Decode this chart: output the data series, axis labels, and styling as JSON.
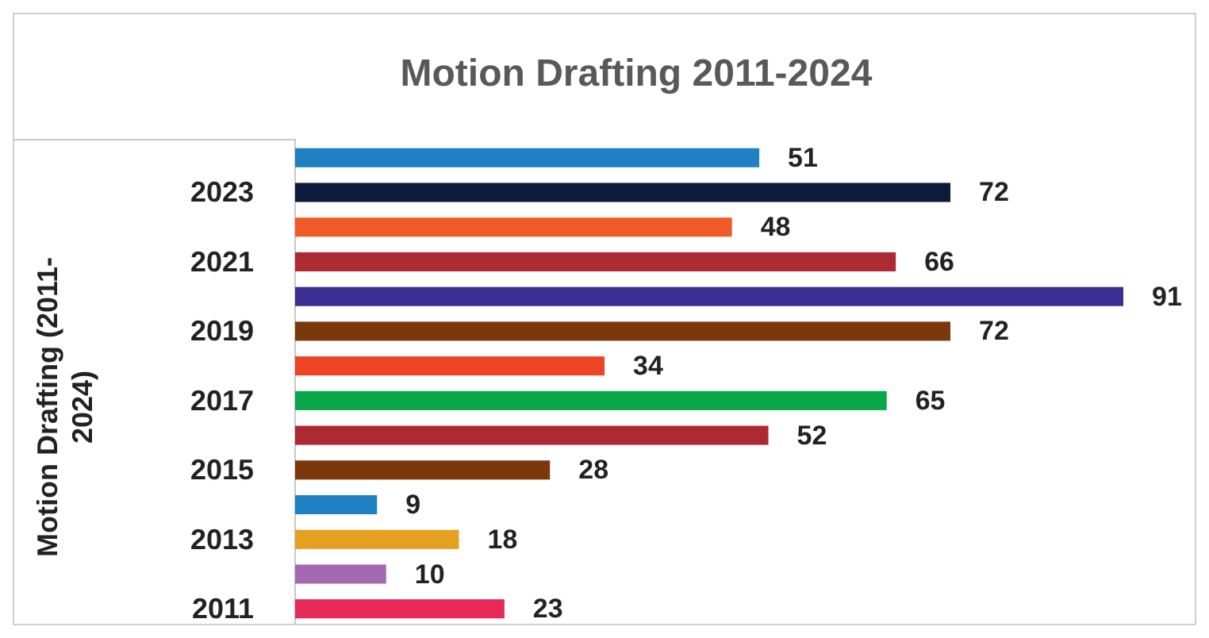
{
  "chart_data": {
    "type": "bar",
    "orientation": "horizontal",
    "title": "Motion Drafting 2011-2024",
    "ylabel": "Motion Drafting  (2011-2024)",
    "categories": [
      null,
      "2023",
      null,
      "2021",
      null,
      "2019",
      null,
      "2017",
      null,
      "2015",
      null,
      "2013",
      null,
      "2011"
    ],
    "values": [
      51,
      72,
      48,
      66,
      91,
      72,
      34,
      65,
      52,
      28,
      9,
      18,
      10,
      23
    ],
    "colors": [
      "#2080c4",
      "#0c1a3c",
      "#f05a28",
      "#ae2a32",
      "#3a2e90",
      "#7a380c",
      "#ee4426",
      "#0ca64a",
      "#ae2a32",
      "#7a380c",
      "#2080c4",
      "#e6a020",
      "#a468b0",
      "#e82a5a"
    ],
    "data_labels": true
  }
}
